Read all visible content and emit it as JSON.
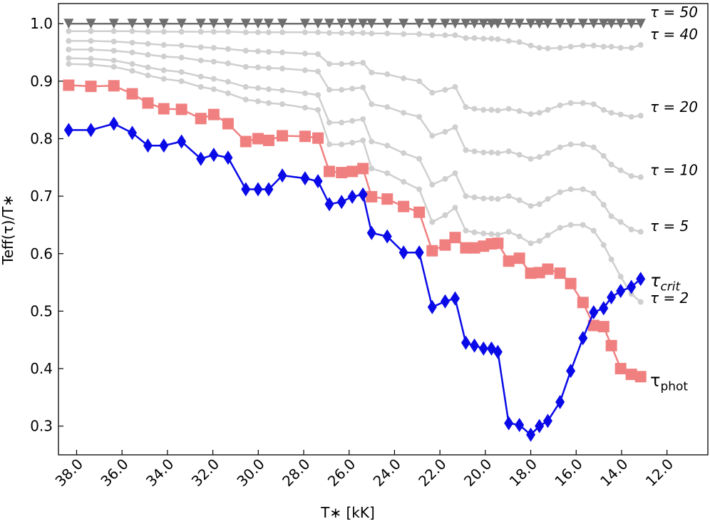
{
  "chart_data": {
    "type": "line",
    "xlabel": "T∗ [kK]",
    "ylabel": "Teff(τ)/T∗",
    "xlim": [
      38.8,
      10.2
    ],
    "ylim": [
      0.25,
      1.035
    ],
    "xticks": [
      {
        "value": 38,
        "label": "38.0"
      },
      {
        "value": 36,
        "label": "36.0"
      },
      {
        "value": 34,
        "label": "34.0"
      },
      {
        "value": 32,
        "label": "32.0"
      },
      {
        "value": 30,
        "label": "30.0"
      },
      {
        "value": 28,
        "label": "28.0"
      },
      {
        "value": 26,
        "label": "26.0"
      },
      {
        "value": 24,
        "label": "24.0"
      },
      {
        "value": 22,
        "label": "22.0"
      },
      {
        "value": 20,
        "label": "20.0"
      },
      {
        "value": 18,
        "label": "18.0"
      },
      {
        "value": 16,
        "label": "16.0"
      },
      {
        "value": 14,
        "label": "14.0"
      },
      {
        "value": 12,
        "label": "12.0"
      }
    ],
    "yticks": [
      0.3,
      0.4,
      0.5,
      0.6,
      0.7,
      0.8,
      0.9,
      {
        "value": 1,
        "label": "1.0"
      }
    ],
    "x": [
      38.35,
      37.37,
      36.36,
      35.55,
      34.86,
      34.16,
      33.38,
      32.53,
      31.96,
      31.33,
      30.55,
      30.01,
      29.54,
      28.94,
      27.94,
      27.37,
      26.87,
      26.33,
      25.86,
      25.39,
      25.01,
      24.32,
      23.6,
      22.91,
      22.34,
      21.77,
      21.33,
      20.86,
      20.48,
      20.08,
      19.73,
      19.45,
      18.97,
      18.5,
      18.0,
      17.62,
      17.25,
      16.71,
      16.24,
      15.7,
      15.23,
      14.79,
      14.45,
      14.04,
      13.57,
      13.16
    ],
    "series": [
      {
        "name": "τ = 40",
        "color": "#cfcfcf",
        "label_color": "#8c8c8c",
        "marker": "circle",
        "values": [
          0.987,
          0.987,
          0.987,
          0.987,
          0.986,
          0.986,
          0.986,
          0.986,
          0.986,
          0.986,
          0.985,
          0.985,
          0.985,
          0.985,
          0.985,
          0.985,
          0.984,
          0.984,
          0.984,
          0.984,
          0.983,
          0.983,
          0.982,
          0.982,
          0.98,
          0.98,
          0.98,
          0.975,
          0.975,
          0.974,
          0.974,
          0.973,
          0.97,
          0.968,
          0.962,
          0.958,
          0.957,
          0.958,
          0.96,
          0.962,
          0.962,
          0.96,
          0.96,
          0.958,
          0.958,
          0.963
        ]
      },
      {
        "name": "τ = 20",
        "color": "#cfcfcf",
        "label_color": "#8c8c8c",
        "marker": "circle",
        "values": [
          0.97,
          0.97,
          0.969,
          0.967,
          0.965,
          0.963,
          0.962,
          0.959,
          0.958,
          0.956,
          0.953,
          0.952,
          0.951,
          0.95,
          0.948,
          0.947,
          0.93,
          0.93,
          0.931,
          0.932,
          0.915,
          0.912,
          0.905,
          0.9,
          0.88,
          0.885,
          0.89,
          0.855,
          0.852,
          0.85,
          0.85,
          0.849,
          0.852,
          0.848,
          0.843,
          0.845,
          0.85,
          0.858,
          0.862,
          0.862,
          0.86,
          0.85,
          0.845,
          0.842,
          0.838,
          0.84
        ]
      },
      {
        "name": "τ = 10",
        "color": "#cfcfcf",
        "label_color": "#8c8c8c",
        "marker": "circle",
        "values": [
          0.955,
          0.955,
          0.953,
          0.95,
          0.946,
          0.943,
          0.941,
          0.936,
          0.934,
          0.931,
          0.925,
          0.924,
          0.923,
          0.922,
          0.919,
          0.917,
          0.885,
          0.885,
          0.887,
          0.889,
          0.86,
          0.855,
          0.845,
          0.838,
          0.805,
          0.812,
          0.82,
          0.78,
          0.778,
          0.776,
          0.776,
          0.775,
          0.778,
          0.772,
          0.765,
          0.768,
          0.775,
          0.785,
          0.79,
          0.79,
          0.785,
          0.77,
          0.755,
          0.745,
          0.735,
          0.733
        ]
      },
      {
        "name": "τ = 5",
        "color": "#cfcfcf",
        "label_color": "#8c8c8c",
        "marker": "circle",
        "values": [
          0.94,
          0.939,
          0.936,
          0.93,
          0.924,
          0.919,
          0.916,
          0.908,
          0.904,
          0.899,
          0.89,
          0.888,
          0.886,
          0.884,
          0.879,
          0.876,
          0.828,
          0.828,
          0.831,
          0.834,
          0.795,
          0.788,
          0.775,
          0.765,
          0.72,
          0.73,
          0.74,
          0.7,
          0.698,
          0.696,
          0.696,
          0.695,
          0.7,
          0.693,
          0.683,
          0.686,
          0.695,
          0.707,
          0.712,
          0.712,
          0.705,
          0.685,
          0.665,
          0.655,
          0.642,
          0.638
        ]
      },
      {
        "name": "τ = 2",
        "color": "#cfcfcf",
        "label_color": "#8c8c8c",
        "marker": "circle",
        "values": [
          0.93,
          0.929,
          0.925,
          0.918,
          0.91,
          0.904,
          0.9,
          0.89,
          0.886,
          0.879,
          0.868,
          0.865,
          0.862,
          0.86,
          0.854,
          0.85,
          0.79,
          0.79,
          0.793,
          0.797,
          0.748,
          0.74,
          0.725,
          0.712,
          0.655,
          0.667,
          0.68,
          0.64,
          0.637,
          0.635,
          0.634,
          0.633,
          0.638,
          0.63,
          0.618,
          0.622,
          0.632,
          0.645,
          0.65,
          0.65,
          0.64,
          0.615,
          0.59,
          0.56,
          0.53,
          0.516
        ]
      },
      {
        "name": "τ = 50",
        "color": "#6e6e6e",
        "label_color": "#000000",
        "marker": "triangle",
        "values": [
          1,
          1,
          1,
          1,
          1,
          1,
          1,
          1,
          1,
          1,
          1,
          1,
          1,
          1,
          1,
          1,
          1,
          1,
          1,
          1,
          1,
          1,
          1,
          1,
          1,
          1,
          1,
          1,
          1,
          1,
          1,
          1,
          1,
          1,
          1,
          1,
          1,
          1,
          1,
          1,
          1,
          1,
          1,
          1,
          1,
          1
        ]
      },
      {
        "name": "τphot",
        "color": "#f08080",
        "label_color": "#f08080",
        "marker": "square",
        "values": [
          0.893,
          0.891,
          0.892,
          0.878,
          0.862,
          0.852,
          0.851,
          0.835,
          0.842,
          0.826,
          0.795,
          0.8,
          0.797,
          0.805,
          0.804,
          0.801,
          0.743,
          0.741,
          0.743,
          0.748,
          0.699,
          0.695,
          0.682,
          0.672,
          0.605,
          0.615,
          0.628,
          0.61,
          0.61,
          0.613,
          0.617,
          0.618,
          0.587,
          0.592,
          0.566,
          0.567,
          0.573,
          0.566,
          0.548,
          0.515,
          0.475,
          0.473,
          0.44,
          0.4,
          0.39,
          0.386
        ]
      },
      {
        "name": "τcrit",
        "color": "#0a0ae8",
        "label_color": "#0a0ae8",
        "marker": "diamond",
        "values": [
          0.815,
          0.815,
          0.826,
          0.81,
          0.788,
          0.788,
          0.795,
          0.765,
          0.772,
          0.767,
          0.712,
          0.712,
          0.712,
          0.736,
          0.731,
          0.726,
          0.686,
          0.69,
          0.699,
          0.703,
          0.636,
          0.63,
          0.602,
          0.602,
          0.507,
          0.517,
          0.522,
          0.445,
          0.44,
          0.435,
          0.435,
          0.429,
          0.305,
          0.302,
          0.285,
          0.3,
          0.309,
          0.342,
          0.396,
          0.453,
          0.498,
          0.505,
          0.524,
          0.535,
          0.542,
          0.556
        ]
      }
    ]
  }
}
